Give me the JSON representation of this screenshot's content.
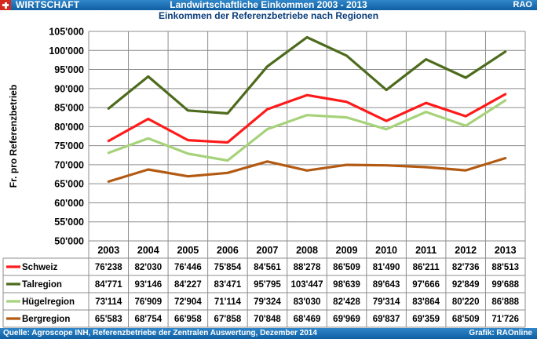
{
  "header": {
    "section": "WIRTSCHAFT",
    "title": "Landwirtschaftliche Einkommen 2003 - 2013",
    "brand": "RAO",
    "flag_icon": "swiss-flag-icon"
  },
  "footer": {
    "source": "Quelle: Agroscope INH, Referenzbetriebe der Zentralen Auswertung, Dezember 2014",
    "credit": "Grafik: RAOnline"
  },
  "chart_data": {
    "type": "line",
    "title": "Einkommen der Referenzbetriebe nach Regionen",
    "ylabel": "Fr. pro Referenzbetrieb",
    "ylim": [
      50000,
      105000
    ],
    "yticks": [
      {
        "value": 50000,
        "label": "50'000"
      },
      {
        "value": 55000,
        "label": "55'000"
      },
      {
        "value": 60000,
        "label": "60'000"
      },
      {
        "value": 65000,
        "label": "65'000"
      },
      {
        "value": 70000,
        "label": "70'000"
      },
      {
        "value": 75000,
        "label": "75'000"
      },
      {
        "value": 80000,
        "label": "80'000"
      },
      {
        "value": 85000,
        "label": "85'000"
      },
      {
        "value": 90000,
        "label": "90'000"
      },
      {
        "value": 95000,
        "label": "95'000"
      },
      {
        "value": 100000,
        "label": "100'000"
      },
      {
        "value": 105000,
        "label": "105'000"
      }
    ],
    "grid": true,
    "legend": "data-table-below",
    "categories": [
      "2003",
      "2004",
      "2005",
      "2006",
      "2007",
      "2008",
      "2009",
      "2010",
      "2011",
      "2012",
      "2013"
    ],
    "series": [
      {
        "name": "Schweiz",
        "color": "#ff1a1a",
        "values": [
          76238,
          82030,
          76446,
          75854,
          84561,
          88278,
          86509,
          81490,
          86211,
          82736,
          88513
        ],
        "labels": [
          "76'238",
          "82'030",
          "76'446",
          "75'854",
          "84'561",
          "88'278",
          "86'509",
          "81'490",
          "86'211",
          "82'736",
          "88'513"
        ]
      },
      {
        "name": "Talregion",
        "color": "#4d6b1c",
        "values": [
          84771,
          93146,
          84227,
          83471,
          95795,
          103447,
          98639,
          89643,
          97666,
          92849,
          99688
        ],
        "labels": [
          "84'771",
          "93'146",
          "84'227",
          "83'471",
          "95'795",
          "103'447",
          "98'639",
          "89'643",
          "97'666",
          "92'849",
          "99'688"
        ]
      },
      {
        "name": "Hügelregion",
        "color": "#a6d27a",
        "values": [
          73114,
          76909,
          72904,
          71114,
          79324,
          83030,
          82428,
          79314,
          83864,
          80220,
          86888
        ],
        "labels": [
          "73'114",
          "76'909",
          "72'904",
          "71'114",
          "79'324",
          "83'030",
          "82'428",
          "79'314",
          "83'864",
          "80'220",
          "86'888"
        ]
      },
      {
        "name": "Bergregion",
        "color": "#b35a12",
        "values": [
          65583,
          68754,
          66958,
          67858,
          70848,
          68469,
          69969,
          69837,
          69359,
          68509,
          71726
        ],
        "labels": [
          "65'583",
          "68'754",
          "66'958",
          "67'858",
          "70'848",
          "68'469",
          "69'969",
          "69'837",
          "69'359",
          "68'509",
          "71'726"
        ]
      }
    ]
  }
}
